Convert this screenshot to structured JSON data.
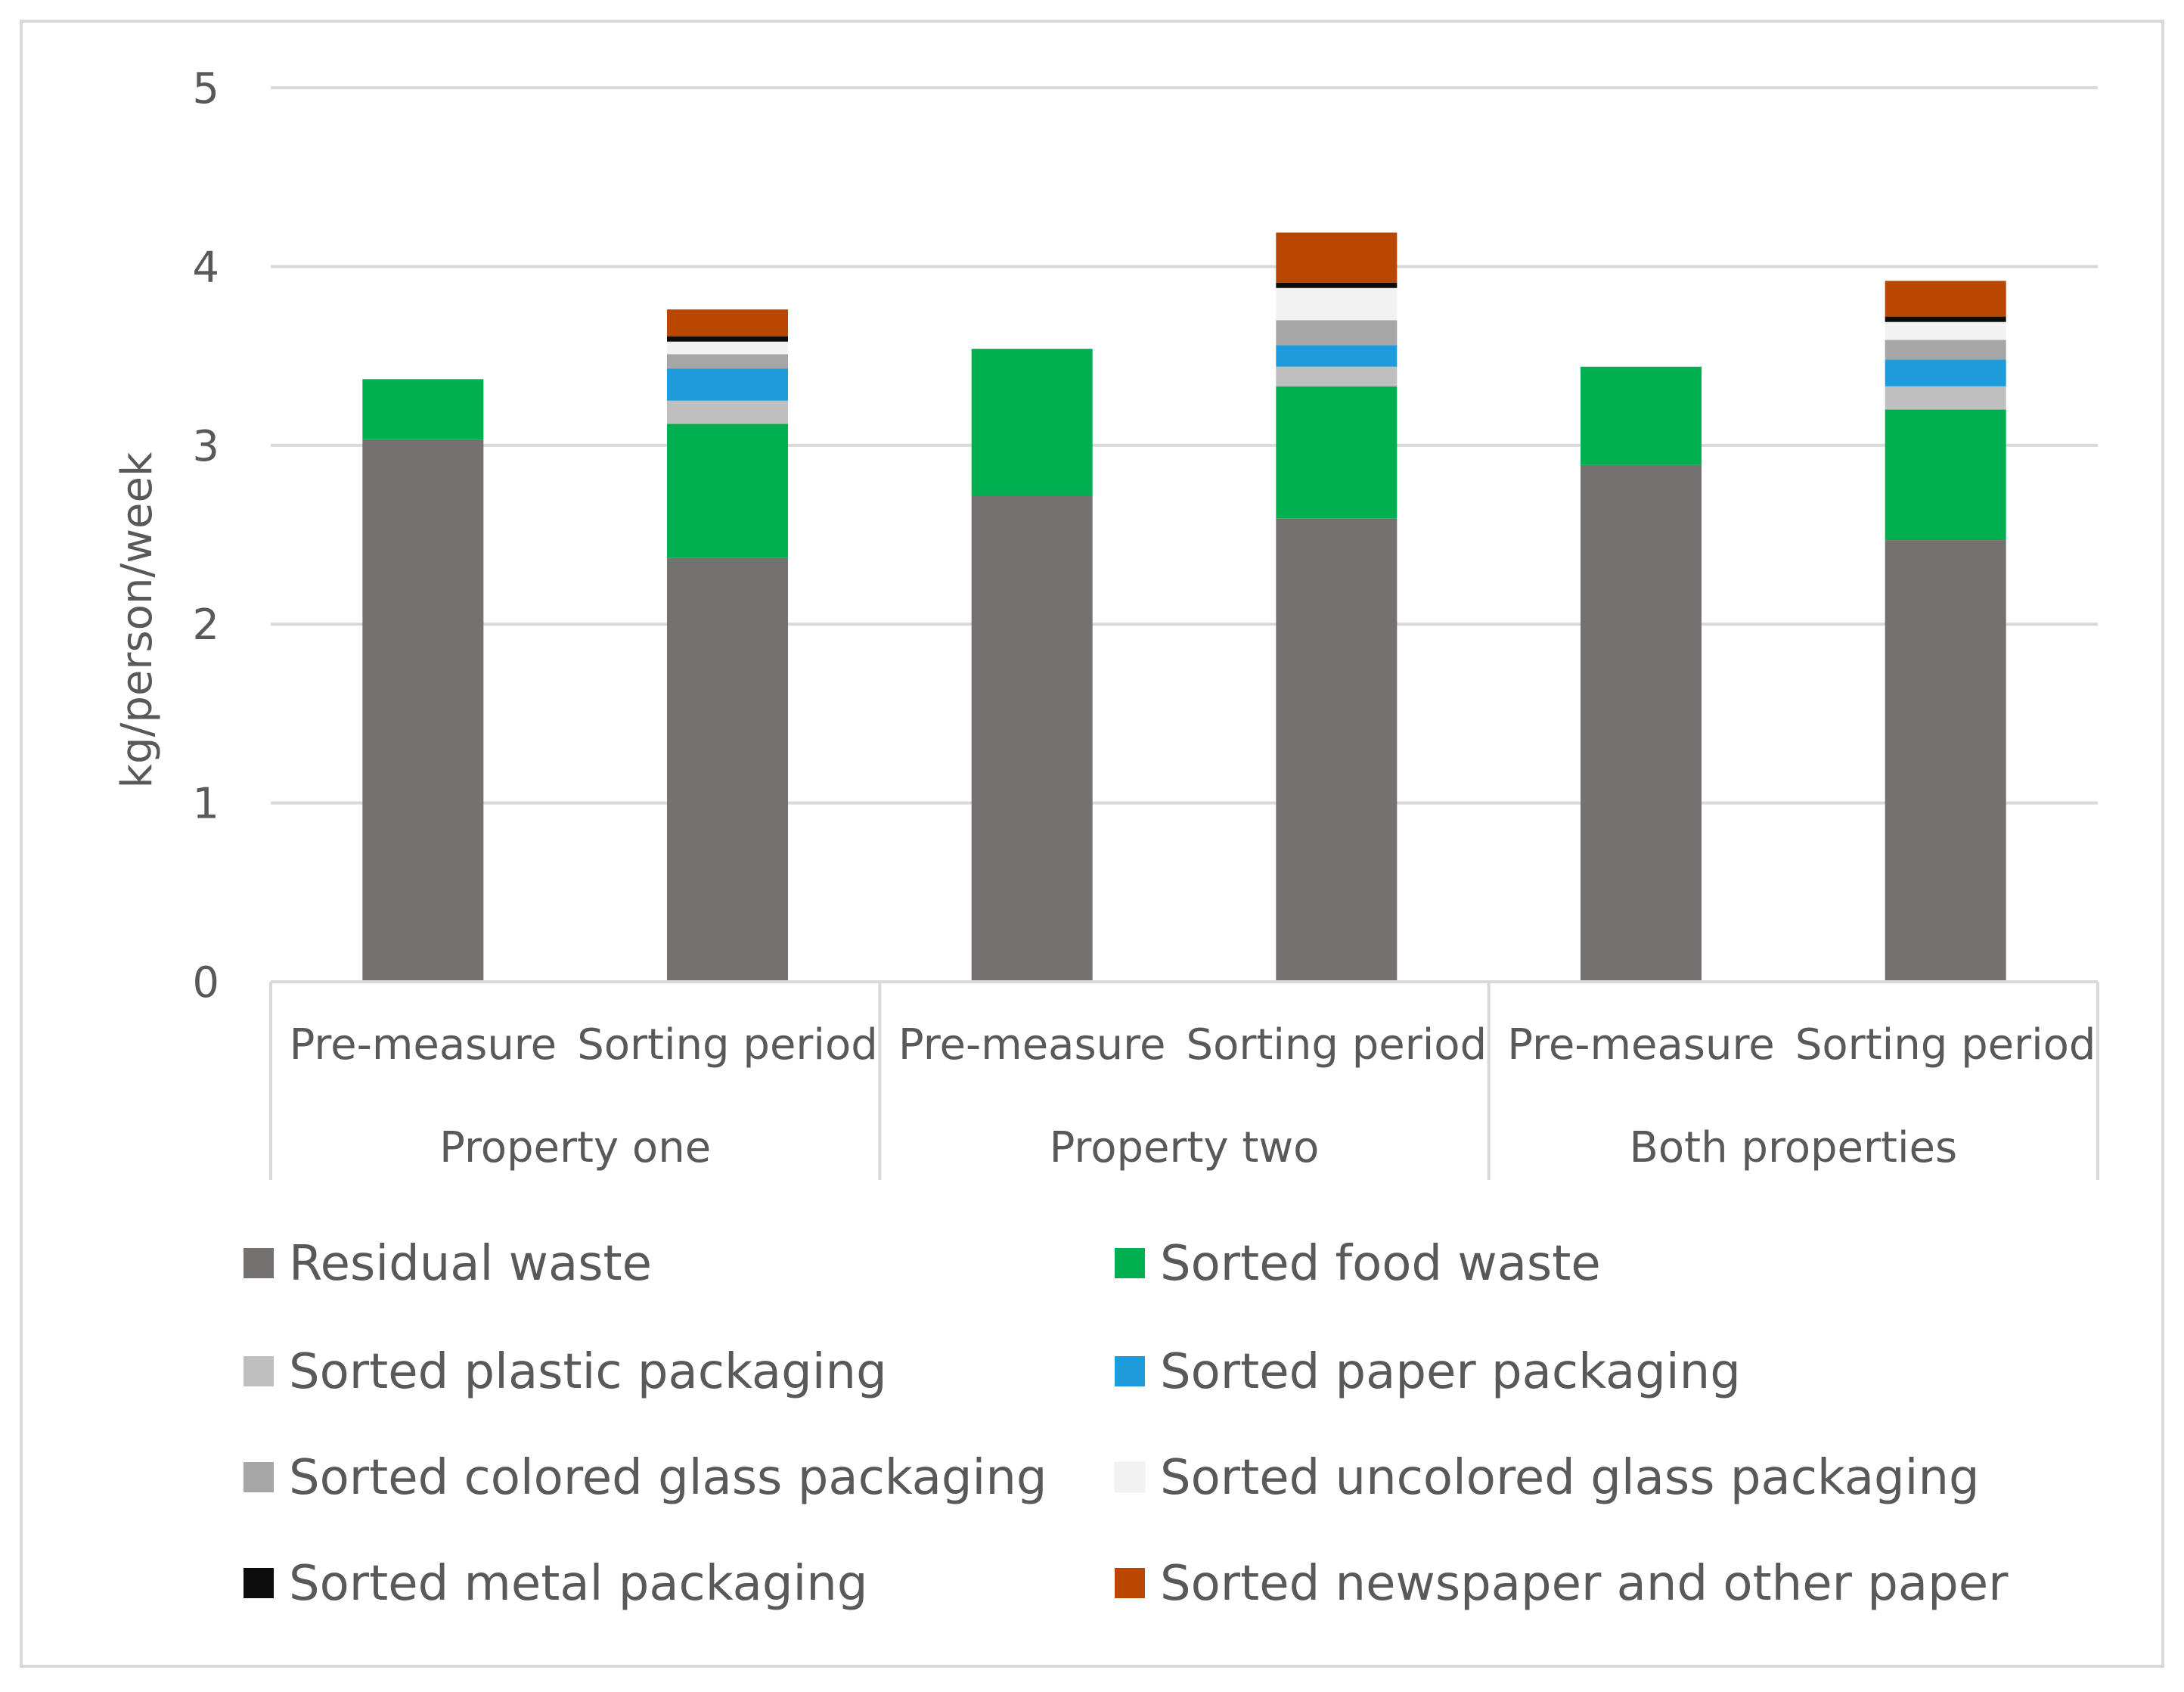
{
  "chart_data": {
    "type": "bar",
    "stacked": true,
    "title": "",
    "xlabel": "",
    "ylabel": "kg/person/week",
    "ylim": [
      0,
      5
    ],
    "yticks": [
      0,
      1,
      2,
      3,
      4,
      5
    ],
    "grid": true,
    "legend_position": "bottom",
    "groups": [
      {
        "label": "Property one",
        "categories": [
          "Pre-measure",
          "Sorting period"
        ]
      },
      {
        "label": "Property two",
        "categories": [
          "Pre-measure",
          "Sorting period"
        ]
      },
      {
        "label": "Both properties",
        "categories": [
          "Pre-measure",
          "Sorting period"
        ]
      }
    ],
    "categories": [
      "Pre-measure",
      "Sorting period",
      "Pre-measure",
      "Sorting period",
      "Pre-measure",
      "Sorting period"
    ],
    "series": [
      {
        "name": "Residual waste",
        "color": "#767171",
        "values": [
          3.03,
          2.37,
          2.72,
          2.59,
          2.89,
          2.47
        ]
      },
      {
        "name": "Sorted food waste",
        "color": "#00B050",
        "values": [
          0.34,
          0.75,
          0.82,
          0.74,
          0.55,
          0.73
        ]
      },
      {
        "name": "Sorted plastic packaging",
        "color": "#BFBFBF",
        "values": [
          0,
          0.13,
          0,
          0.11,
          0,
          0.13
        ]
      },
      {
        "name": "Sorted paper packaging",
        "color": "#1F9BDB",
        "values": [
          0,
          0.18,
          0,
          0.12,
          0,
          0.15
        ]
      },
      {
        "name": "Sorted colored glass packaging",
        "color": "#A6A6A6",
        "values": [
          0,
          0.08,
          0,
          0.14,
          0,
          0.11
        ]
      },
      {
        "name": "Sorted  uncolored glass packaging",
        "color": "#F2F2F2",
        "values": [
          0,
          0.07,
          0,
          0.18,
          0,
          0.1
        ]
      },
      {
        "name": "Sorted metal packaging",
        "color": "#0D0D0D",
        "values": [
          0,
          0.03,
          0,
          0.03,
          0,
          0.03
        ]
      },
      {
        "name": "Sorted newspaper and other paper",
        "color": "#B94700",
        "values": [
          0,
          0.15,
          0,
          0.28,
          0,
          0.2
        ]
      }
    ]
  }
}
